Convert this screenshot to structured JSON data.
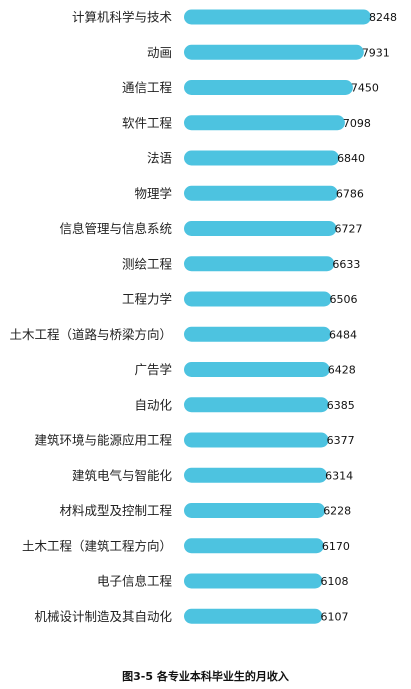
{
  "caption": "图3-5 各专业本科毕业生的月收入",
  "chart_data": {
    "type": "bar",
    "orientation": "horizontal",
    "title": "",
    "xlabel": "",
    "ylabel": "",
    "bar_color": "#4dc3e0",
    "grid": false,
    "legend": "none",
    "categories": [
      "计算机科学与技术",
      "动画",
      "通信工程",
      "软件工程",
      "法语",
      "物理学",
      "信息管理与信息系统",
      "测绘工程",
      "工程力学",
      "土木工程（道路与桥梁方向）",
      "广告学",
      "自动化",
      "建筑环境与能源应用工程",
      "建筑电气与智能化",
      "材料成型及控制工程",
      "土木工程（建筑工程方向）",
      "电子信息工程",
      "机械设计制造及其自动化"
    ],
    "values": [
      8248,
      7931,
      7450,
      7098,
      6840,
      6786,
      6727,
      6633,
      6506,
      6484,
      6428,
      6385,
      6377,
      6314,
      6228,
      6170,
      6108,
      6107
    ]
  }
}
